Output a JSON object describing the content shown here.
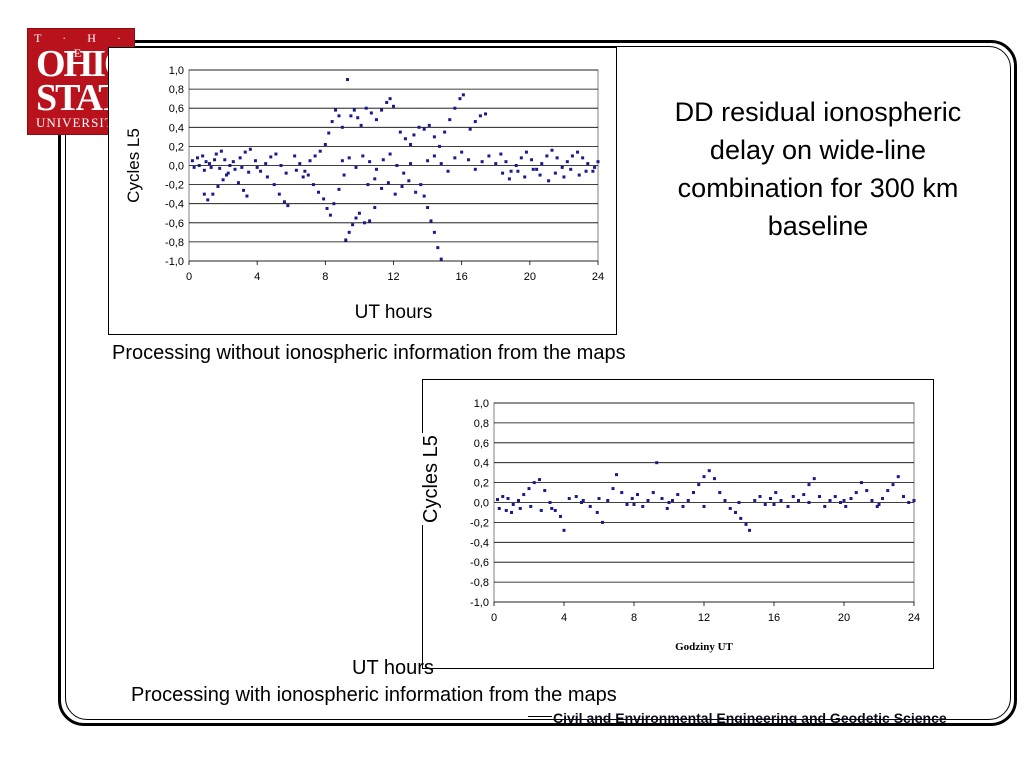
{
  "logo": {
    "line1": "T · H · E",
    "line2": "OHIO",
    "line3": "STATE",
    "line4": "UNIVERSITY"
  },
  "title": "DD residual ionospheric delay on wide-line combination for 300 km baseline",
  "captions": {
    "top": "Processing without ionospheric information from the maps",
    "bottom": "Processing with ionospheric information from the maps"
  },
  "footer": "Civil and Environmental Engineering and Geodetic Science",
  "external_labels": {
    "bottom_xlabel": "UT hours",
    "bottom_ylabel": "Cycles L5"
  },
  "colors": {
    "series": "#1a1a8c",
    "logo_red": "#b8121c"
  },
  "chart_data": [
    {
      "type": "scatter",
      "title": "",
      "xlabel": "UT hours",
      "ylabel": "Cycles L5",
      "xlim": [
        0,
        24
      ],
      "ylim": [
        -1.0,
        1.0
      ],
      "x_ticks": [
        "0",
        "4",
        "8",
        "12",
        "16",
        "20",
        "24"
      ],
      "y_ticks": [
        "1,0",
        "0,8",
        "0,6",
        "0,4",
        "0,2",
        "0,0",
        "-0,2",
        "-0,4",
        "-0,6",
        "-0,8",
        "-1,0"
      ],
      "grid": "horizontal",
      "points": [
        [
          0.2,
          0.05
        ],
        [
          0.5,
          0.08
        ],
        [
          0.8,
          0.1
        ],
        [
          1.0,
          0.04
        ],
        [
          1.3,
          -0.02
        ],
        [
          1.6,
          0.12
        ],
        [
          1.9,
          0.15
        ],
        [
          2.1,
          0.06
        ],
        [
          2.4,
          0.0
        ],
        [
          2.7,
          -0.04
        ],
        [
          3.0,
          0.08
        ],
        [
          3.3,
          0.14
        ],
        [
          3.6,
          0.17
        ],
        [
          3.9,
          0.05
        ],
        [
          4.2,
          -0.06
        ],
        [
          4.5,
          0.02
        ],
        [
          4.8,
          0.09
        ],
        [
          5.1,
          0.12
        ],
        [
          5.4,
          0.0
        ],
        [
          5.7,
          -0.08
        ],
        [
          0.3,
          -0.02
        ],
        [
          0.6,
          0.0
        ],
        [
          0.9,
          -0.05
        ],
        [
          1.2,
          0.02
        ],
        [
          1.5,
          0.06
        ],
        [
          1.8,
          -0.03
        ],
        [
          2.2,
          -0.1
        ],
        [
          2.6,
          0.04
        ],
        [
          3.1,
          -0.02
        ],
        [
          3.5,
          -0.07
        ],
        [
          4.0,
          -0.02
        ],
        [
          4.6,
          -0.12
        ],
        [
          5.0,
          -0.2
        ],
        [
          5.3,
          -0.3
        ],
        [
          5.6,
          -0.38
        ],
        [
          5.8,
          -0.42
        ],
        [
          0.9,
          -0.3
        ],
        [
          1.1,
          -0.36
        ],
        [
          1.4,
          -0.3
        ],
        [
          1.7,
          -0.22
        ],
        [
          2.0,
          -0.15
        ],
        [
          2.3,
          -0.08
        ],
        [
          2.9,
          -0.18
        ],
        [
          3.2,
          -0.26
        ],
        [
          3.4,
          -0.32
        ],
        [
          6.2,
          0.1
        ],
        [
          6.5,
          0.02
        ],
        [
          6.8,
          -0.06
        ],
        [
          7.1,
          0.05
        ],
        [
          7.4,
          0.1
        ],
        [
          7.7,
          0.15
        ],
        [
          8.0,
          0.22
        ],
        [
          8.2,
          0.34
        ],
        [
          8.4,
          0.46
        ],
        [
          8.6,
          0.58
        ],
        [
          8.8,
          0.52
        ],
        [
          9.0,
          0.4
        ],
        [
          9.3,
          0.9
        ],
        [
          6.3,
          -0.05
        ],
        [
          6.7,
          -0.12
        ],
        [
          7.0,
          -0.1
        ],
        [
          7.3,
          -0.2
        ],
        [
          7.6,
          -0.28
        ],
        [
          7.9,
          -0.35
        ],
        [
          8.1,
          -0.45
        ],
        [
          8.3,
          -0.52
        ],
        [
          8.5,
          -0.4
        ],
        [
          8.8,
          -0.25
        ],
        [
          9.1,
          -0.1
        ],
        [
          9.2,
          -0.78
        ],
        [
          9.4,
          -0.7
        ],
        [
          9.6,
          -0.62
        ],
        [
          9.8,
          -0.55
        ],
        [
          10.0,
          -0.5
        ],
        [
          10.3,
          -0.6
        ],
        [
          10.6,
          -0.58
        ],
        [
          10.9,
          -0.44
        ],
        [
          9.5,
          0.52
        ],
        [
          9.7,
          0.58
        ],
        [
          9.9,
          0.5
        ],
        [
          10.1,
          0.42
        ],
        [
          10.4,
          0.6
        ],
        [
          10.7,
          0.55
        ],
        [
          11.0,
          0.48
        ],
        [
          11.3,
          0.58
        ],
        [
          11.6,
          0.66
        ],
        [
          11.8,
          0.7
        ],
        [
          12.0,
          0.62
        ],
        [
          9.0,
          0.05
        ],
        [
          9.4,
          0.08
        ],
        [
          9.8,
          -0.02
        ],
        [
          10.2,
          0.1
        ],
        [
          10.6,
          0.04
        ],
        [
          11.0,
          -0.04
        ],
        [
          11.4,
          0.06
        ],
        [
          11.8,
          0.12
        ],
        [
          12.2,
          0.0
        ],
        [
          12.6,
          -0.08
        ],
        [
          13.0,
          0.02
        ],
        [
          10.5,
          -0.2
        ],
        [
          10.9,
          -0.14
        ],
        [
          11.3,
          -0.24
        ],
        [
          11.7,
          -0.18
        ],
        [
          12.1,
          -0.3
        ],
        [
          12.5,
          -0.22
        ],
        [
          12.9,
          -0.16
        ],
        [
          13.3,
          -0.28
        ],
        [
          12.4,
          0.35
        ],
        [
          12.7,
          0.28
        ],
        [
          13.0,
          0.22
        ],
        [
          13.2,
          0.32
        ],
        [
          13.5,
          0.4
        ],
        [
          13.8,
          0.38
        ],
        [
          14.1,
          0.42
        ],
        [
          14.4,
          0.3
        ],
        [
          14.7,
          0.2
        ],
        [
          15.0,
          0.35
        ],
        [
          15.3,
          0.48
        ],
        [
          15.6,
          0.6
        ],
        [
          15.9,
          0.7
        ],
        [
          16.1,
          0.74
        ],
        [
          13.6,
          -0.2
        ],
        [
          13.8,
          -0.32
        ],
        [
          14.0,
          -0.44
        ],
        [
          14.2,
          -0.58
        ],
        [
          14.4,
          -0.7
        ],
        [
          14.6,
          -0.86
        ],
        [
          14.8,
          -0.98
        ],
        [
          14.0,
          0.05
        ],
        [
          14.4,
          0.1
        ],
        [
          14.8,
          0.02
        ],
        [
          15.2,
          -0.06
        ],
        [
          15.6,
          0.08
        ],
        [
          16.0,
          0.14
        ],
        [
          16.4,
          0.06
        ],
        [
          16.8,
          -0.04
        ],
        [
          17.2,
          0.04
        ],
        [
          17.6,
          0.1
        ],
        [
          18.0,
          0.02
        ],
        [
          16.5,
          0.38
        ],
        [
          16.8,
          0.46
        ],
        [
          17.1,
          0.52
        ],
        [
          17.4,
          0.54
        ],
        [
          18.3,
          0.12
        ],
        [
          18.6,
          0.04
        ],
        [
          18.9,
          -0.06
        ],
        [
          19.2,
          0.0
        ],
        [
          19.5,
          0.08
        ],
        [
          19.8,
          0.14
        ],
        [
          20.1,
          0.06
        ],
        [
          20.4,
          -0.04
        ],
        [
          20.7,
          0.02
        ],
        [
          21.0,
          0.1
        ],
        [
          21.3,
          0.16
        ],
        [
          21.6,
          0.08
        ],
        [
          21.9,
          -0.02
        ],
        [
          22.2,
          0.04
        ],
        [
          22.5,
          0.1
        ],
        [
          22.8,
          0.14
        ],
        [
          23.1,
          0.08
        ],
        [
          23.4,
          0.02
        ],
        [
          23.7,
          -0.06
        ],
        [
          24.0,
          0.04
        ],
        [
          18.4,
          -0.08
        ],
        [
          18.8,
          -0.14
        ],
        [
          19.3,
          -0.06
        ],
        [
          19.7,
          -0.12
        ],
        [
          20.2,
          -0.04
        ],
        [
          20.6,
          -0.1
        ],
        [
          21.1,
          -0.16
        ],
        [
          21.5,
          -0.08
        ],
        [
          22.0,
          -0.12
        ],
        [
          22.4,
          -0.04
        ],
        [
          22.9,
          -0.1
        ],
        [
          23.3,
          -0.06
        ],
        [
          23.8,
          -0.02
        ]
      ]
    },
    {
      "type": "scatter",
      "title": "",
      "xlabel": "Godziny UT",
      "ylabel": "",
      "xlim": [
        0,
        24
      ],
      "ylim": [
        -1.0,
        1.0
      ],
      "x_ticks": [
        "0",
        "4",
        "8",
        "12",
        "16",
        "20",
        "24"
      ],
      "y_ticks": [
        "1,0",
        "0,8",
        "0,6",
        "0,4",
        "0,2",
        "0,0",
        "-0,2",
        "-0,4",
        "-0,6",
        "-0,8",
        "-1,0"
      ],
      "grid": "horizontal",
      "points": [
        [
          0.2,
          0.03
        ],
        [
          0.5,
          0.06
        ],
        [
          0.8,
          0.04
        ],
        [
          1.1,
          -0.02
        ],
        [
          1.4,
          0.02
        ],
        [
          1.7,
          0.08
        ],
        [
          2.0,
          0.14
        ],
        [
          2.3,
          0.2
        ],
        [
          2.6,
          0.23
        ],
        [
          2.9,
          0.12
        ],
        [
          3.2,
          0.0
        ],
        [
          3.5,
          -0.08
        ],
        [
          3.8,
          -0.14
        ],
        [
          4.0,
          -0.28
        ],
        [
          0.3,
          -0.06
        ],
        [
          0.7,
          -0.08
        ],
        [
          1.0,
          -0.1
        ],
        [
          1.5,
          -0.06
        ],
        [
          2.1,
          -0.04
        ],
        [
          2.7,
          -0.08
        ],
        [
          3.3,
          -0.06
        ],
        [
          4.3,
          0.04
        ],
        [
          4.7,
          0.06
        ],
        [
          5.1,
          0.02
        ],
        [
          5.5,
          -0.04
        ],
        [
          5.9,
          -0.1
        ],
        [
          6.2,
          -0.2
        ],
        [
          6.5,
          0.02
        ],
        [
          6.8,
          0.14
        ],
        [
          7.0,
          0.28
        ],
        [
          7.3,
          0.1
        ],
        [
          7.6,
          -0.02
        ],
        [
          7.9,
          0.04
        ],
        [
          8.2,
          0.08
        ],
        [
          8.5,
          -0.04
        ],
        [
          8.8,
          0.02
        ],
        [
          9.1,
          0.1
        ],
        [
          9.3,
          0.4
        ],
        [
          9.6,
          0.04
        ],
        [
          9.9,
          -0.06
        ],
        [
          10.2,
          0.02
        ],
        [
          10.5,
          0.08
        ],
        [
          10.8,
          -0.04
        ],
        [
          11.1,
          0.02
        ],
        [
          11.4,
          0.1
        ],
        [
          11.7,
          0.18
        ],
        [
          12.0,
          0.26
        ],
        [
          12.3,
          0.32
        ],
        [
          12.6,
          0.24
        ],
        [
          12.9,
          0.1
        ],
        [
          13.2,
          0.02
        ],
        [
          13.5,
          -0.06
        ],
        [
          13.8,
          -0.1
        ],
        [
          14.1,
          -0.16
        ],
        [
          14.4,
          -0.22
        ],
        [
          14.6,
          -0.28
        ],
        [
          14.9,
          0.02
        ],
        [
          15.2,
          0.06
        ],
        [
          15.5,
          -0.02
        ],
        [
          15.8,
          0.04
        ],
        [
          16.1,
          0.1
        ],
        [
          16.4,
          0.02
        ],
        [
          16.8,
          -0.04
        ],
        [
          17.1,
          0.06
        ],
        [
          17.4,
          0.02
        ],
        [
          17.7,
          0.08
        ],
        [
          18.0,
          0.18
        ],
        [
          18.3,
          0.24
        ],
        [
          18.6,
          0.06
        ],
        [
          18.9,
          -0.04
        ],
        [
          19.2,
          0.02
        ],
        [
          19.5,
          0.06
        ],
        [
          19.8,
          0.0
        ],
        [
          20.1,
          -0.04
        ],
        [
          20.4,
          0.04
        ],
        [
          20.7,
          0.1
        ],
        [
          21.0,
          0.2
        ],
        [
          21.3,
          0.12
        ],
        [
          21.6,
          0.02
        ],
        [
          21.9,
          -0.04
        ],
        [
          22.2,
          0.04
        ],
        [
          22.5,
          0.12
        ],
        [
          22.8,
          0.18
        ],
        [
          23.1,
          0.26
        ],
        [
          23.4,
          0.06
        ],
        [
          23.7,
          0.0
        ],
        [
          24.0,
          0.02
        ],
        [
          5.0,
          0.0
        ],
        [
          6.0,
          0.04
        ],
        [
          8.0,
          -0.02
        ],
        [
          10.0,
          0.0
        ],
        [
          12.0,
          -0.04
        ],
        [
          14.0,
          0.0
        ],
        [
          16.0,
          -0.02
        ],
        [
          18.0,
          0.0
        ],
        [
          20.0,
          0.02
        ],
        [
          22.0,
          -0.02
        ]
      ]
    }
  ]
}
